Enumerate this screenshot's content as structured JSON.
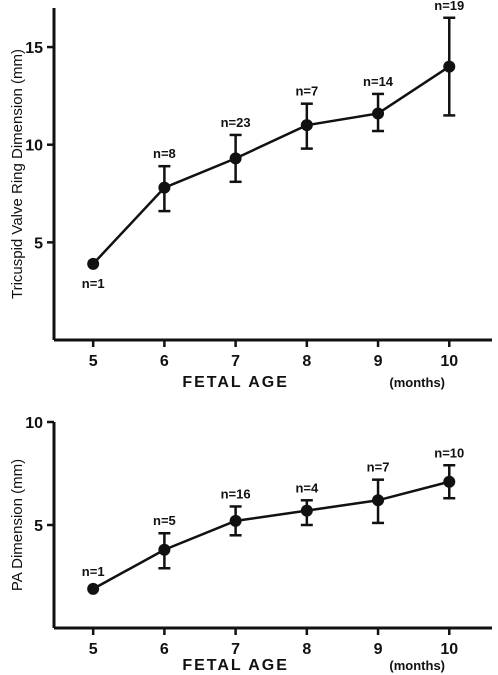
{
  "chart_data": [
    {
      "type": "line",
      "title": "",
      "xlabel": "FETAL  AGE",
      "xunit": "(months)",
      "ylabel": "Tricuspid Valve Ring Dimension  (mm)",
      "x_ticks": [
        "5",
        "6",
        "7",
        "8",
        "9",
        "10"
      ],
      "y_ticks": [
        "5",
        "10",
        "15"
      ],
      "x": [
        5,
        6,
        7,
        8,
        9,
        10
      ],
      "y": [
        3.9,
        7.8,
        9.3,
        11.0,
        11.6,
        14.0
      ],
      "error_low": [
        null,
        6.6,
        8.1,
        9.8,
        10.7,
        11.5
      ],
      "error_high": [
        null,
        8.9,
        10.5,
        12.1,
        12.6,
        16.5
      ],
      "n_labels": [
        "n=1",
        "n=8",
        "n=23",
        "n=7",
        "n=14",
        "n=19"
      ],
      "xlim": [
        4.45,
        10.6
      ],
      "ylim": [
        0,
        17
      ],
      "grid": false
    },
    {
      "type": "line",
      "title": "",
      "xlabel": "FETAL  AGE",
      "xunit": "(months)",
      "ylabel": "PA Dimension  (mm)",
      "x_ticks": [
        "5",
        "6",
        "7",
        "8",
        "9",
        "10"
      ],
      "y_ticks": [
        "5",
        "10"
      ],
      "x": [
        5,
        6,
        7,
        8,
        9,
        10
      ],
      "y": [
        1.9,
        3.8,
        5.2,
        5.7,
        6.2,
        7.1
      ],
      "error_low": [
        null,
        2.9,
        4.5,
        5.0,
        5.1,
        6.3
      ],
      "error_high": [
        null,
        4.6,
        5.9,
        6.2,
        7.2,
        7.9
      ],
      "n_labels": [
        "n=1",
        "n=5",
        "n=16",
        "n=4",
        "n=7",
        "n=10"
      ],
      "xlim": [
        4.45,
        10.6
      ],
      "ylim": [
        0,
        10
      ],
      "grid": false
    }
  ]
}
